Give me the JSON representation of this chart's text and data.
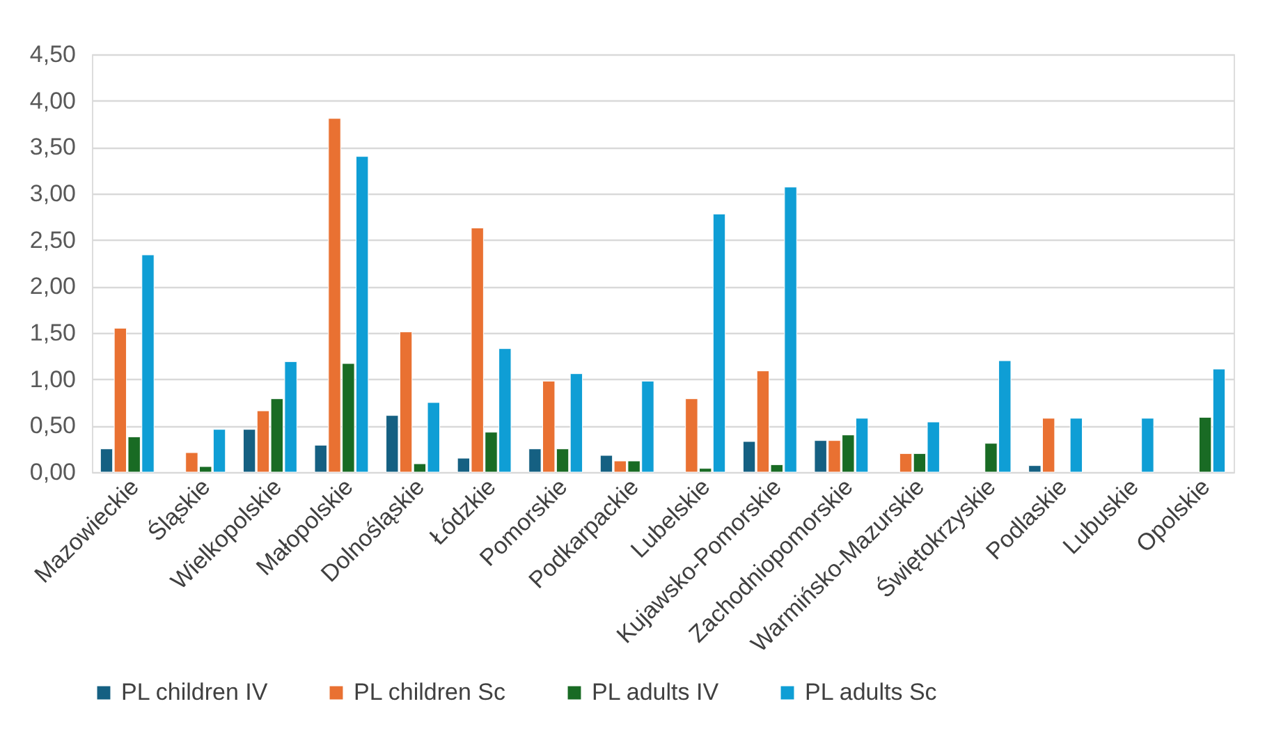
{
  "chart_data": {
    "type": "bar",
    "categories": [
      "Mazowieckie",
      "Śląskie",
      "Wielkopolskie",
      "Małopolskie",
      "Dolnośląskie",
      "Łódzkie",
      "Pomorskie",
      "Podkarpackie",
      "Lubelskie",
      "Kujawsko-Pomorskie",
      "Zachodniopomorskie",
      "Warmińsko-Mazurskie",
      "Świętokrzyskie",
      "Podlaskie",
      "Lubuskie",
      "Opolskie"
    ],
    "series": [
      {
        "name": "PL children IV",
        "color": "#156082",
        "values": [
          0.25,
          null,
          0.46,
          0.29,
          0.61,
          0.15,
          0.25,
          0.18,
          null,
          0.33,
          0.34,
          null,
          null,
          0.07,
          null,
          null
        ]
      },
      {
        "name": "PL children Sc",
        "color": "#e97132",
        "values": [
          1.55,
          0.21,
          0.66,
          3.81,
          1.51,
          2.63,
          0.98,
          0.12,
          0.79,
          1.09,
          0.34,
          0.2,
          null,
          0.58,
          null,
          null
        ]
      },
      {
        "name": "PL adults IV",
        "color": "#196b24",
        "values": [
          0.38,
          0.06,
          0.79,
          1.17,
          0.09,
          0.43,
          0.25,
          0.12,
          0.04,
          0.08,
          0.4,
          0.2,
          0.31,
          null,
          null,
          0.59
        ]
      },
      {
        "name": "PL adults Sc",
        "color": "#0f9ed5",
        "values": [
          2.34,
          0.46,
          1.19,
          3.4,
          0.75,
          1.33,
          1.06,
          0.98,
          2.78,
          3.07,
          0.58,
          0.54,
          1.2,
          0.58,
          0.58,
          1.11
        ]
      }
    ],
    "ylim": [
      0,
      4.5
    ],
    "yticks": [
      {
        "value": 0,
        "label": "0,00"
      },
      {
        "value": 0.5,
        "label": "0,50"
      },
      {
        "value": 1,
        "label": "1,00"
      },
      {
        "value": 1.5,
        "label": "1,50"
      },
      {
        "value": 2,
        "label": "2,00"
      },
      {
        "value": 2.5,
        "label": "2,50"
      },
      {
        "value": 3,
        "label": "3,00"
      },
      {
        "value": 3.5,
        "label": "3,50"
      },
      {
        "value": 4,
        "label": "4,00"
      },
      {
        "value": 4.5,
        "label": "4,50"
      }
    ],
    "grid": "y",
    "legend": "bottom"
  }
}
